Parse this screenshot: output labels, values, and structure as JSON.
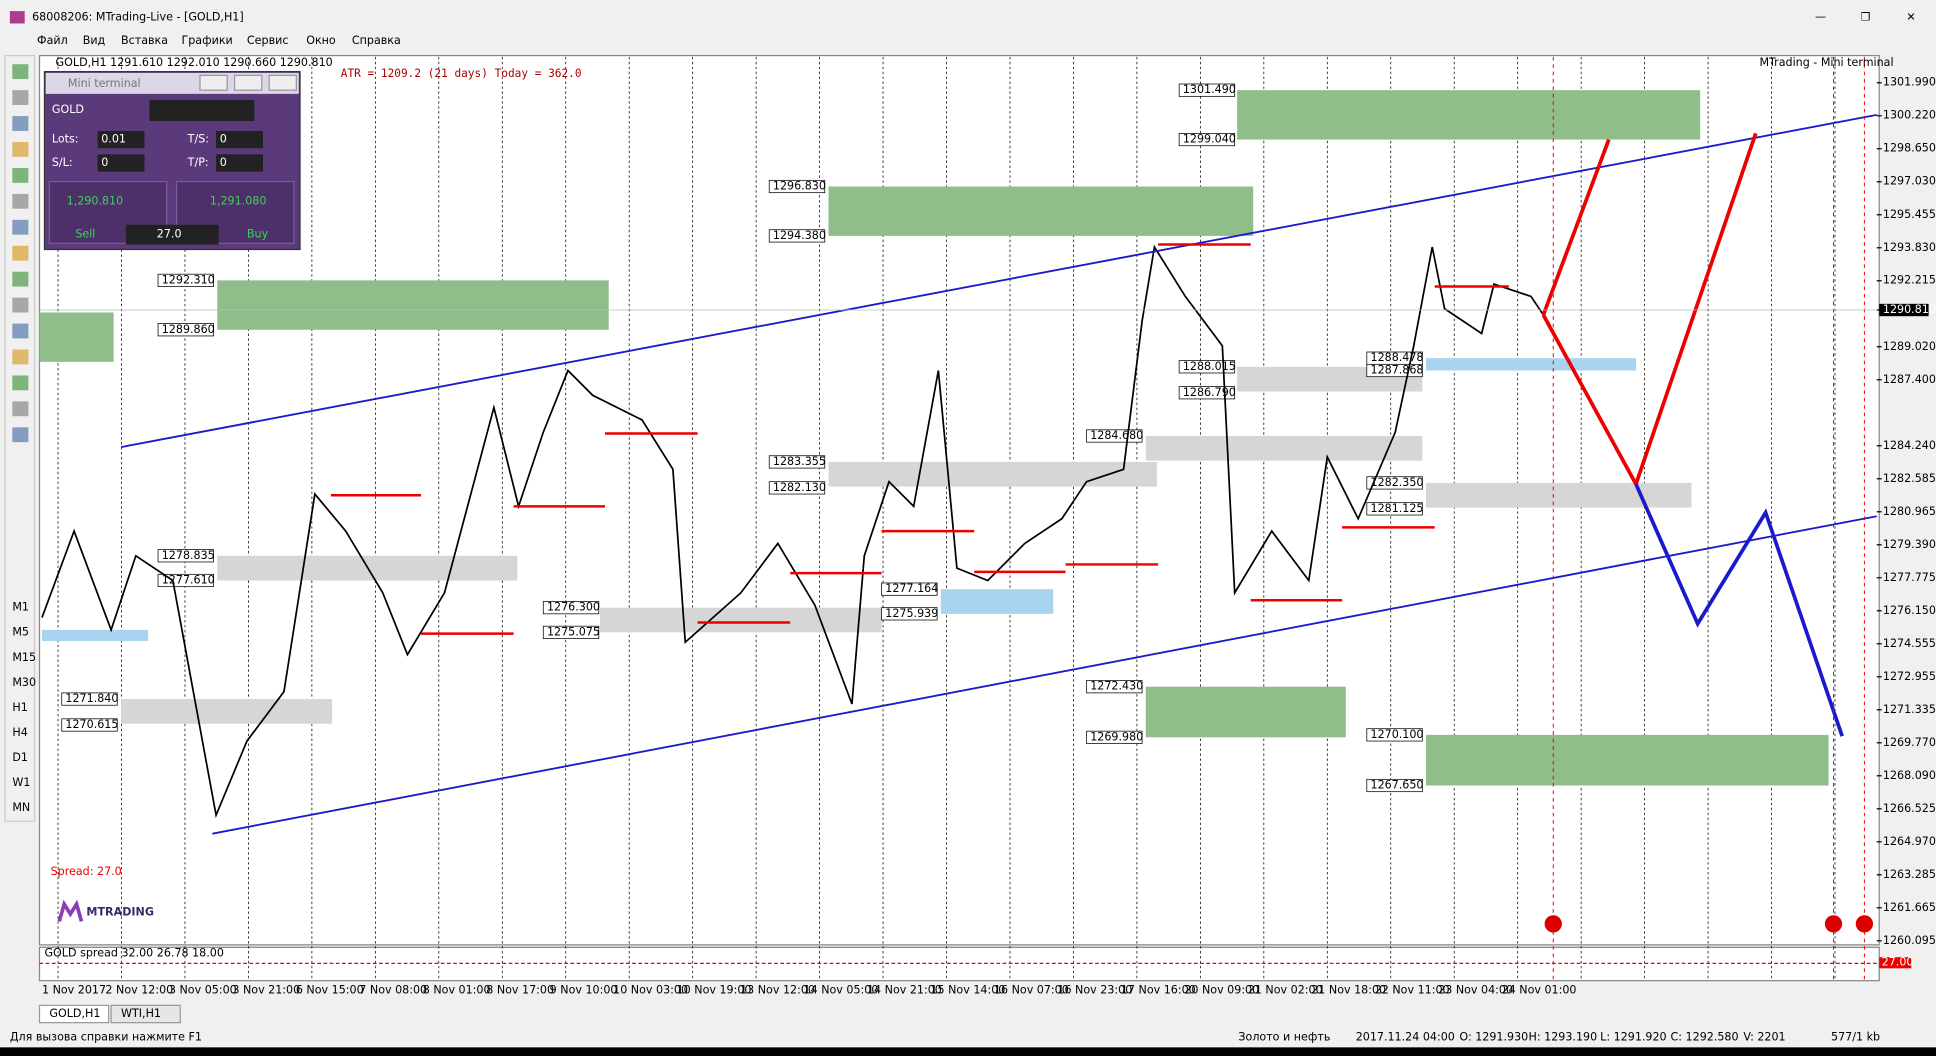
{
  "window": {
    "title": "68008206: MTrading-Live - [GOLD,H1]",
    "menu": [
      "Файл",
      "Вид",
      "Вставка",
      "Графики",
      "Сервис",
      "Окно",
      "Справка"
    ]
  },
  "toolbar": {
    "timeframes": [
      "M1",
      "M5",
      "M15",
      "M30",
      "H1",
      "H4",
      "D1",
      "W1",
      "MN"
    ]
  },
  "chart": {
    "header": "GOLD,H1  1291.610 1292.010 1290.660 1290.810",
    "atr": "ATR = 1209.2  (21 days)  Today = 362.0",
    "brand": "MTrading - Mini terminal",
    "price_axis": [
      "1301.990",
      "1300.220",
      "1298.650",
      "1297.030",
      "1295.455",
      "1293.830",
      "1292.215",
      "1290.810",
      "1289.020",
      "1287.400",
      "1284.240",
      "1282.585",
      "1280.965",
      "1279.390",
      "1277.775",
      "1276.150",
      "1274.555",
      "1272.955",
      "1271.335",
      "1269.770",
      "1268.090",
      "1266.525",
      "1264.970",
      "1263.285",
      "1261.665",
      "1260.095"
    ],
    "time_axis": [
      "1 Nov 2017",
      "2 Nov 12:00",
      "3 Nov 05:00",
      "3 Nov 21:00",
      "6 Nov 15:00",
      "7 Nov 08:00",
      "8 Nov 01:00",
      "8 Nov 17:00",
      "9 Nov 10:00",
      "10 Nov 03:00",
      "10 Nov 19:00",
      "13 Nov 12:00",
      "14 Nov 05:00",
      "14 Nov 21:00",
      "15 Nov 14:00",
      "16 Nov 07:00",
      "16 Nov 23:00",
      "17 Nov 16:00",
      "20 Nov 09:00",
      "21 Nov 02:00",
      "21 Nov 18:00",
      "22 Nov 11:00",
      "23 Nov 04:00",
      "24 Nov 01:00"
    ],
    "levels": [
      "1301.490",
      "1299.040",
      "1296.830",
      "1294.380",
      "1292.310",
      "1289.860",
      "1288.015",
      "1286.790",
      "1284.680",
      "1283.355",
      "1282.130",
      "1278.835",
      "1277.610",
      "1276.300",
      "1275.075",
      "1277.164",
      "1275.939",
      "1272.430",
      "1269.980",
      "1271.840",
      "1270.615",
      "1288.478",
      "1287.868",
      "1282.350",
      "1281.125",
      "1270.100",
      "1267.650"
    ],
    "spread": "Spread: 27.0",
    "logo": "MTRADING",
    "indicator": "GOLD spread 32.00 26.78 18.00",
    "indicator_value": "27.00"
  },
  "mini_terminal": {
    "title": "Mini terminal",
    "symbol": "GOLD",
    "lots_label": "Lots:",
    "lots": "0.01",
    "ts_label": "T/S:",
    "ts": "0",
    "sl_label": "S/L:",
    "sl": "0",
    "tp_label": "T/P:",
    "tp": "0",
    "bid": "1,290.810",
    "ask": "1,291.080",
    "sell": "Sell",
    "spread": "27.0",
    "buy": "Buy"
  },
  "tabs": [
    "GOLD,H1",
    "WTI,H1"
  ],
  "status": {
    "help": "Для вызова справки нажмите F1",
    "profile": "Золото и нефть",
    "time": "2017.11.24 04:00",
    "open": "O: 1291.930",
    "high": "H: 1293.190",
    "low": "L: 1291.920",
    "close": "C: 1292.580",
    "volume": "V: 2201",
    "traffic": "577/1 kb"
  }
}
